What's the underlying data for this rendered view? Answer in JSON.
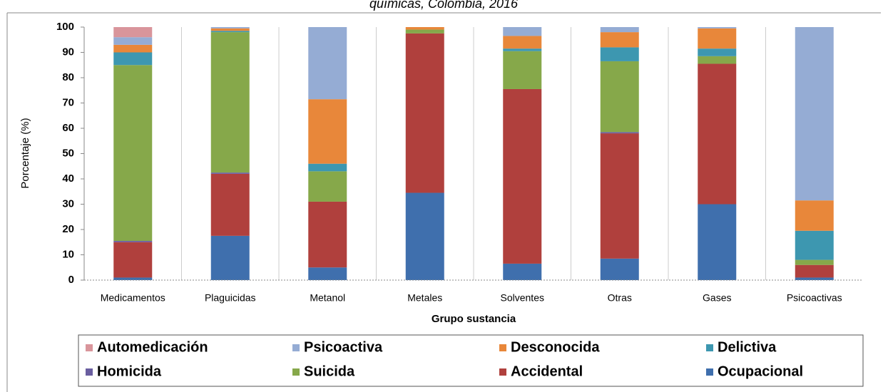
{
  "chart_data": {
    "type": "stacked_bar",
    "title": "químicas, Colombia, 2016",
    "x_label": "Grupo sustancia",
    "y_label": "Porcentaje (%)",
    "categories": [
      "Medicamentos",
      "Plaguicidas",
      "Metanol",
      "Metales",
      "Solventes",
      "Otras",
      "Gases",
      "Psicoactivas"
    ],
    "series": [
      {
        "name": "Ocupacional",
        "color": "#3f6fad",
        "values": [
          1,
          17.5,
          5,
          34.5,
          6.5,
          8.5,
          30,
          1
        ]
      },
      {
        "name": "Accidental",
        "color": "#b0403d",
        "values": [
          14,
          24.5,
          26,
          63,
          69,
          49.5,
          55.5,
          5
        ]
      },
      {
        "name": "Homicida",
        "color": "#6a5ea0",
        "values": [
          0.5,
          0.5,
          0,
          0,
          0,
          0.5,
          0,
          0
        ]
      },
      {
        "name": "Suicida",
        "color": "#86a84a",
        "values": [
          69.5,
          55.5,
          12,
          1.5,
          15,
          28,
          3,
          2
        ]
      },
      {
        "name": "Delictiva",
        "color": "#3d97b0",
        "values": [
          5,
          0.5,
          3,
          0,
          1,
          5.5,
          3,
          11.5
        ]
      },
      {
        "name": "Desconocida",
        "color": "#e8873a",
        "values": [
          3,
          1,
          25.5,
          1,
          5,
          6,
          8,
          12
        ]
      },
      {
        "name": "Psicoactiva",
        "color": "#95acd4",
        "values": [
          3,
          0.5,
          28.5,
          0,
          3.5,
          2,
          0.5,
          68.5
        ]
      },
      {
        "name": "Automedicación",
        "color": "#d9959b",
        "values": [
          4,
          0,
          0,
          0,
          0,
          0,
          0,
          0
        ]
      }
    ],
    "legend_order": [
      7,
      6,
      5,
      4,
      2,
      3,
      1,
      0
    ],
    "ylim": [
      0,
      100
    ],
    "yticks": [
      0,
      10,
      20,
      30,
      40,
      50,
      60,
      70,
      80,
      90,
      100
    ],
    "grid": false
  }
}
